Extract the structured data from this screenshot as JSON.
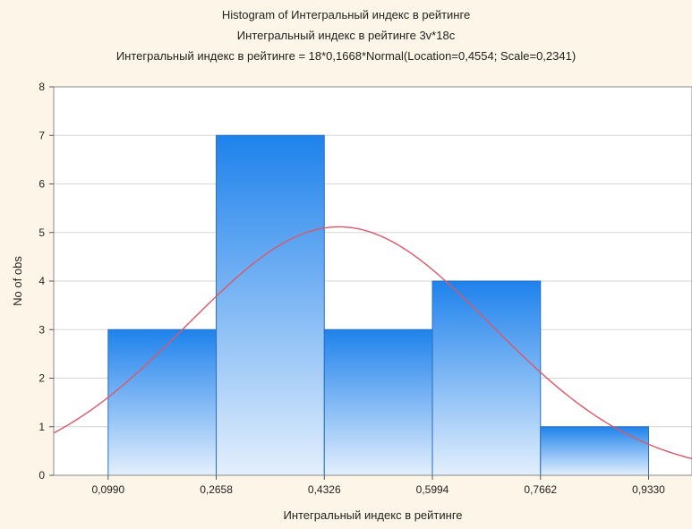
{
  "chart_data": {
    "type": "bar",
    "title": "Histogram of Интегральный индекс в рейтинге",
    "subtitle": "Интегральный индекс в рейтинге 3v*18c",
    "formula": "Интегральный индекс в рейтинге = 18*0,1668*Normal(Location=0,4554; Scale=0,2341)",
    "xlabel": "Интегральный индекс в рейтинге",
    "ylabel": "No of obs",
    "x_tick_labels": [
      "0,0990",
      "0,2658",
      "0,4326",
      "0,5994",
      "0,7662",
      "0,9330"
    ],
    "x_ticks": [
      0.099,
      0.2658,
      0.4326,
      0.5994,
      0.7662,
      0.933
    ],
    "bins": [
      {
        "from": 0.099,
        "to": 0.2658,
        "count": 3
      },
      {
        "from": 0.2658,
        "to": 0.4326,
        "count": 7
      },
      {
        "from": 0.4326,
        "to": 0.5994,
        "count": 3
      },
      {
        "from": 0.5994,
        "to": 0.7662,
        "count": 4
      },
      {
        "from": 0.7662,
        "to": 0.933,
        "count": 1
      }
    ],
    "normal_fit": {
      "n": 18,
      "bin_width": 0.1668,
      "location": 0.4554,
      "scale": 0.2341
    },
    "xlim": [
      0.015,
      1.0
    ],
    "ylim": [
      0,
      8
    ],
    "y_ticks": [
      0,
      1,
      2,
      3,
      4,
      5,
      6,
      7,
      8
    ],
    "grid": true,
    "colors": {
      "bar_top": "#1e82ec",
      "bar_bottom": "#e3effd",
      "bar_stroke": "#2a6fc2",
      "curve": "#d9586a",
      "grid": "#d6d6d6",
      "background": "#fdf6e8",
      "plot_background": "#ffffff"
    }
  }
}
